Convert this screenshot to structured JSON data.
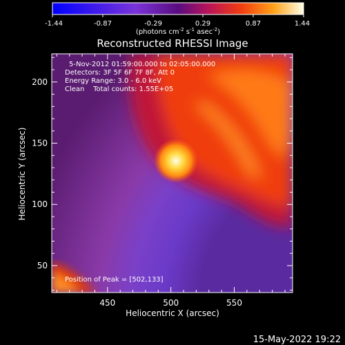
{
  "chart_data": {
    "type": "heatmap",
    "title": "Reconstructed RHESSI Image",
    "xlabel": "Heliocentric X (arcsec)",
    "ylabel": "Heliocentric Y (arcsec)",
    "xlim": [
      406,
      596
    ],
    "ylim": [
      28,
      223
    ],
    "xticks": [
      450,
      500,
      550
    ],
    "yticks": [
      50,
      100,
      150,
      200
    ],
    "colorbar": {
      "min": -1.44,
      "max": 1.44,
      "ticks": [
        "-1.44",
        "-0.87",
        "-0.29",
        "0.29",
        "0.87",
        "1.44"
      ],
      "units_text": "(photons cm",
      "units_exp1": "-2",
      "units_mid": " s",
      "units_exp2": "-1",
      "units_end": " asec",
      "units_exp3": "-2",
      "units_close": ")"
    },
    "annotations": {
      "time_range": "5-Nov-2012 01:59:00.000 to 02:05:00.000",
      "detectors": "Detectors: 3F 5F 6F 7F 8F, Att 0",
      "energy": "Energy Range: 3.0 - 6.0 keV",
      "clean": "Clean    Total counts: 1.55E+05",
      "peak": "Position of Peak = [502,133]"
    },
    "peak": {
      "x": 502,
      "y": 133
    },
    "timestamp": "15-May-2022 19:22"
  }
}
